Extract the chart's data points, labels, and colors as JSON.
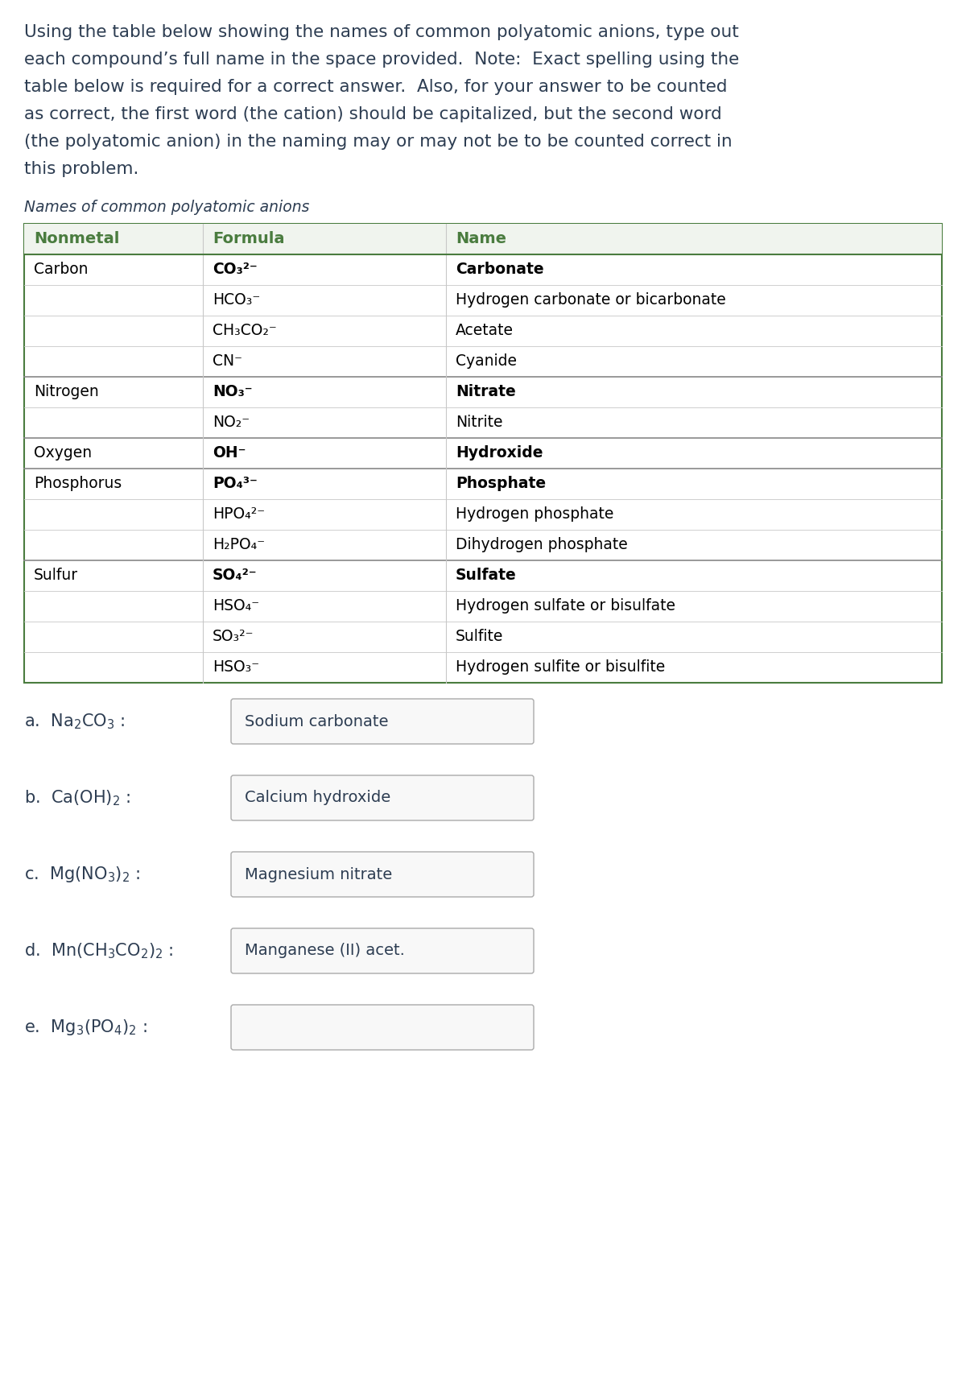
{
  "intro_text_lines": [
    "Using the table below showing the names of common polyatomic anions, type out",
    "each compound’s full name in the space provided.  Note:  Exact spelling using the",
    "table below is required for a correct answer.  Also, for your answer to be counted",
    "as correct, the first word (the cation) should be capitalized, but the second word",
    "(the polyatomic anion) in the naming may or may not be to be counted correct in",
    "this problem."
  ],
  "table_title": "Names of common polyatomic anions",
  "header": [
    "Nonmetal",
    "Formula",
    "Name"
  ],
  "table_rows": [
    {
      "nonmetal": "Carbon",
      "formula": "CO₃²⁻",
      "name": "Carbonate",
      "bold": true,
      "section_start": true
    },
    {
      "nonmetal": "",
      "formula": "HCO₃⁻",
      "name": "Hydrogen carbonate or bicarbonate",
      "bold": false,
      "section_start": false
    },
    {
      "nonmetal": "",
      "formula": "CH₃CO₂⁻",
      "name": "Acetate",
      "bold": false,
      "section_start": false
    },
    {
      "nonmetal": "",
      "formula": "CN⁻",
      "name": "Cyanide",
      "bold": false,
      "section_start": false
    },
    {
      "nonmetal": "Nitrogen",
      "formula": "NO₃⁻",
      "name": "Nitrate",
      "bold": true,
      "section_start": true
    },
    {
      "nonmetal": "",
      "formula": "NO₂⁻",
      "name": "Nitrite",
      "bold": false,
      "section_start": false
    },
    {
      "nonmetal": "Oxygen",
      "formula": "OH⁻",
      "name": "Hydroxide",
      "bold": true,
      "section_start": true
    },
    {
      "nonmetal": "Phosphorus",
      "formula": "PO₄³⁻",
      "name": "Phosphate",
      "bold": true,
      "section_start": true
    },
    {
      "nonmetal": "",
      "formula": "HPO₄²⁻",
      "name": "Hydrogen phosphate",
      "bold": false,
      "section_start": false
    },
    {
      "nonmetal": "",
      "formula": "H₂PO₄⁻",
      "name": "Dihydrogen phosphate",
      "bold": false,
      "section_start": false
    },
    {
      "nonmetal": "Sulfur",
      "formula": "SO₄²⁻",
      "name": "Sulfate",
      "bold": true,
      "section_start": true
    },
    {
      "nonmetal": "",
      "formula": "HSO₄⁻",
      "name": "Hydrogen sulfate or bisulfate",
      "bold": false,
      "section_start": false
    },
    {
      "nonmetal": "",
      "formula": "SO₃²⁻",
      "name": "Sulfite",
      "bold": false,
      "section_start": false
    },
    {
      "nonmetal": "",
      "formula": "HSO₃⁻",
      "name": "Hydrogen sulfite or bisulfite",
      "bold": false,
      "section_start": false
    }
  ],
  "answers": [
    {
      "label_plain": "a.  Na",
      "label_sub": "2",
      "label_mid": "CO",
      "label_sub2": "3",
      "label_end": " :",
      "answer": "Sodium carbonate"
    },
    {
      "label_plain": "b.  Ca(OH)",
      "label_sub": "2",
      "label_mid": "",
      "label_sub2": "",
      "label_end": " :",
      "answer": "Calcium hydroxide"
    },
    {
      "label_plain": "c.  Mg(NO",
      "label_sub": "3",
      "label_mid": ")",
      "label_sub2": "2",
      "label_end": " :",
      "answer": "Magnesium nitrate"
    },
    {
      "label_plain": "d.  Mn(CH",
      "label_sub": "3",
      "label_mid": "CO",
      "label_sub2": "2",
      "label_end": ")₂ :",
      "answer": "Manganese (II) acet."
    },
    {
      "label_plain": "e.  Mg",
      "label_sub": "3",
      "label_mid": "(PO",
      "label_sub2": "4",
      "label_end": ")₂ :",
      "answer": ""
    }
  ],
  "answer_labels_mathtext": [
    "a.  Na$_2$CO$_3$ :",
    "b.  Ca(OH)$_2$ :",
    "c.  Mg(NO$_3$)$_2$ :",
    "d.  Mn(CH$_3$CO$_2$)$_2$ :",
    "e.  Mg$_3$(PO$_4$)$_2$ :"
  ],
  "text_color": "#2d3d52",
  "green_color": "#4a7c3f",
  "dark_border": "#5a6a5a",
  "light_sep": "#c8c8c8",
  "section_sep": "#888888",
  "bg": "#ffffff",
  "intro_fontsize": 15.5,
  "table_title_fontsize": 13.5,
  "header_fontsize": 14,
  "cell_fontsize": 13.5,
  "answer_label_fontsize": 15,
  "answer_text_fontsize": 14
}
